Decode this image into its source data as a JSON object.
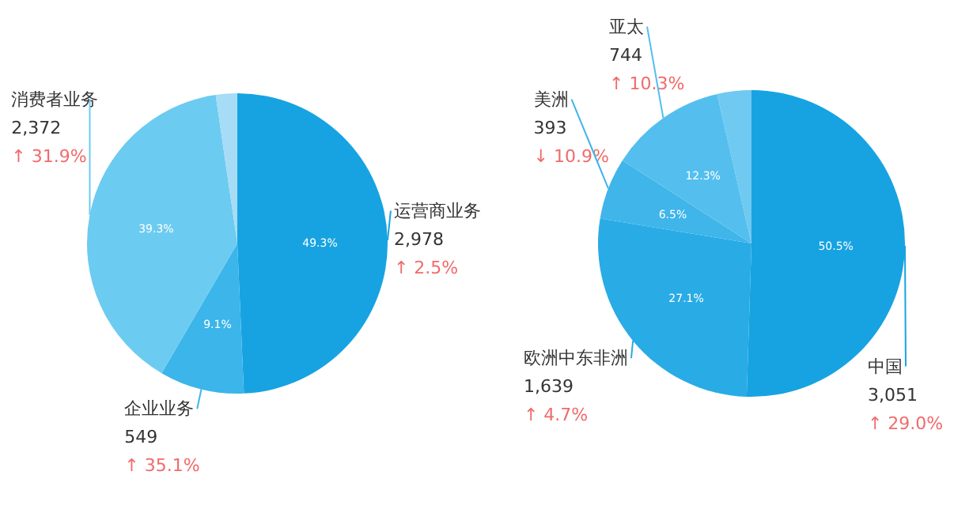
{
  "chart_data": [
    {
      "type": "pie",
      "categories": [
        "运营商业务",
        "企业业务",
        "消费者业务",
        null
      ],
      "values": [
        49.3,
        9.1,
        39.3,
        2.3
      ],
      "colors": [
        "#17a3e2",
        "#3bb5ea",
        "#6ccbf0",
        "#a6dcf5"
      ],
      "value_labels": [
        "49.3%",
        "9.1%",
        "39.3%",
        null
      ],
      "annotations": [
        "2,978",
        "↑ 2.5%",
        "549",
        "↑ 35.1%",
        "2,372",
        "↑ 31.9%"
      ]
    },
    {
      "type": "pie",
      "categories": [
        "中国",
        "欧洲中东非洲",
        "美洲",
        "亚太",
        null
      ],
      "values": [
        50.5,
        27.1,
        6.5,
        12.3,
        3.6
      ],
      "colors": [
        "#17a3e2",
        "#29abe5",
        "#3fb5ea",
        "#54bfee",
        "#6fc9f1"
      ],
      "value_labels": [
        "50.5%",
        "27.1%",
        "6.5%",
        "12.3%",
        null
      ],
      "annotations": [
        "3,051",
        "↑ 29.0%",
        "1,639",
        "↑ 4.7%",
        "393",
        "↓ 10.9%",
        "744",
        "↑ 10.3%"
      ]
    }
  ]
}
